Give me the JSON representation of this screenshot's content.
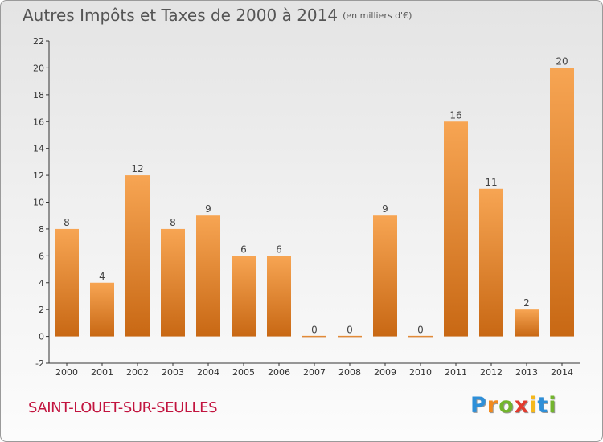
{
  "header": {
    "title": "Autres Impôts et Taxes de 2000 à 2014",
    "unit": "(en milliers d'€)"
  },
  "footer": {
    "commune": "SAINT-LOUET-SUR-SEULLES",
    "logo_letters": [
      "P",
      "r",
      "o",
      "x",
      "i",
      "t",
      "i"
    ],
    "logo_colors": [
      "#2e8fd8",
      "#f28a1e",
      "#73b52d",
      "#e23b2e",
      "#f5b81c",
      "#2e8fd8",
      "#73b52d"
    ]
  },
  "chart_data": {
    "type": "bar",
    "categories": [
      "2000",
      "2001",
      "2002",
      "2003",
      "2004",
      "2005",
      "2006",
      "2007",
      "2008",
      "2009",
      "2010",
      "2011",
      "2012",
      "2013",
      "2014"
    ],
    "values": [
      8,
      4,
      12,
      8,
      9,
      6,
      6,
      0,
      0,
      9,
      0,
      16,
      11,
      2,
      20
    ],
    "ylim": [
      -2,
      22
    ],
    "yticks": [
      -2,
      0,
      2,
      4,
      6,
      8,
      10,
      12,
      14,
      16,
      18,
      20,
      22
    ],
    "bar_color_light": "#f7a553",
    "bar_color_dark": "#c86814",
    "grid": false
  }
}
